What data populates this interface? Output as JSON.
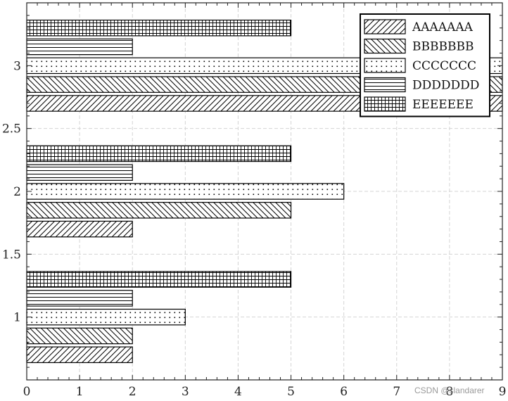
{
  "chart_data": {
    "type": "bar",
    "orientation": "horizontal",
    "categories": [
      1,
      2,
      3
    ],
    "series": [
      {
        "name": "AAAAAAA",
        "values": [
          2,
          2,
          9
        ],
        "hatch": "diag-right"
      },
      {
        "name": "BBBBBBB",
        "values": [
          2,
          5,
          9
        ],
        "hatch": "diag-left"
      },
      {
        "name": "CCCCCCC",
        "values": [
          3,
          6,
          9
        ],
        "hatch": "dots"
      },
      {
        "name": "DDDDDDD",
        "values": [
          2,
          2,
          2
        ],
        "hatch": "horizontal"
      },
      {
        "name": "EEEEEEE",
        "values": [
          5,
          5,
          5
        ],
        "hatch": "grid"
      }
    ],
    "xlim": [
      0,
      9
    ],
    "ylim": [
      0.5,
      3.5
    ],
    "xticks": [
      "0",
      "1",
      "2",
      "3",
      "4",
      "5",
      "6",
      "7",
      "8",
      "9"
    ],
    "yticks": [
      "1",
      "1.5",
      "2",
      "2.5",
      "3"
    ],
    "grid": true,
    "legend": "top-right",
    "title": "",
    "xlabel": "",
    "ylabel": ""
  },
  "watermark": "CSDN @slandarer"
}
